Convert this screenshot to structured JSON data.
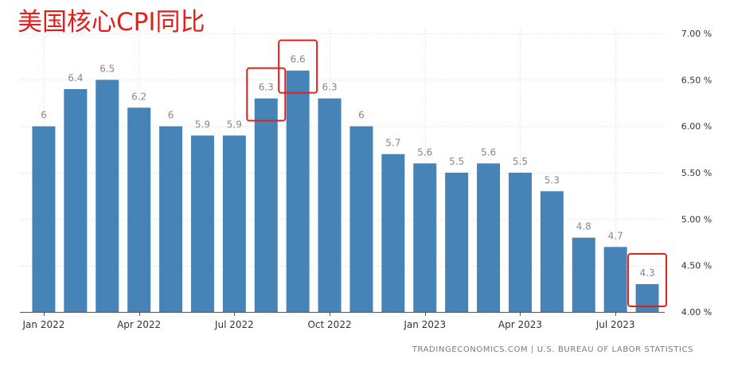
{
  "title": "美国核心CPI同比",
  "source": "TRADINGECONOMICS.COM  |  U.S. BUREAU OF LABOR STATISTICS",
  "colors": {
    "bar": "#4683b7",
    "highlight_box": "#e0201b",
    "grid": "#dcdcdc",
    "value_label": "#888888",
    "axis_text": "#333333",
    "title": "#e0201b"
  },
  "chart_data": {
    "type": "bar",
    "categories": [
      "2022-01",
      "2022-02",
      "2022-03",
      "2022-04",
      "2022-05",
      "2022-06",
      "2022-07",
      "2022-08",
      "2022-09",
      "2022-10",
      "2022-11",
      "2022-12",
      "2023-01",
      "2023-02",
      "2023-03",
      "2023-04",
      "2023-05",
      "2023-06",
      "2023-07",
      "2023-08"
    ],
    "values": [
      6.0,
      6.4,
      6.5,
      6.2,
      6.0,
      5.9,
      5.9,
      6.3,
      6.6,
      6.3,
      6.0,
      5.7,
      5.6,
      5.5,
      5.6,
      5.5,
      5.3,
      4.8,
      4.7,
      4.3
    ],
    "value_labels": [
      "6",
      "6.4",
      "6.5",
      "6.2",
      "6",
      "5.9",
      "5.9",
      "6.3",
      "6.6",
      "6.3",
      "6",
      "5.7",
      "5.6",
      "5.5",
      "5.6",
      "5.5",
      "5.3",
      "4.8",
      "4.7",
      "4.3"
    ],
    "x_tick_labels": [
      {
        "index": 0,
        "label": "Jan 2022"
      },
      {
        "index": 3,
        "label": "Apr 2022"
      },
      {
        "index": 6,
        "label": "Jul 2022"
      },
      {
        "index": 9,
        "label": "Oct 2022"
      },
      {
        "index": 12,
        "label": "Jan 2023"
      },
      {
        "index": 15,
        "label": "Apr 2023"
      },
      {
        "index": 18,
        "label": "Jul 2023"
      }
    ],
    "y_ticks": [
      4.0,
      4.5,
      5.0,
      5.5,
      6.0,
      6.5,
      7.0
    ],
    "y_tick_labels": [
      "4.00 %",
      "4.50 %",
      "5.00 %",
      "5.50 %",
      "6.00 %",
      "6.50 %",
      "7.00 %"
    ],
    "ylim": [
      4.0,
      7.0
    ],
    "y_axis_side": "right",
    "grid": true,
    "highlighted_indices": [
      7,
      8,
      19
    ]
  }
}
